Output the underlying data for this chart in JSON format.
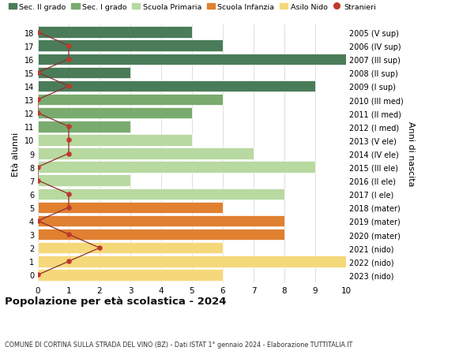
{
  "ages": [
    18,
    17,
    16,
    15,
    14,
    13,
    12,
    11,
    10,
    9,
    8,
    7,
    6,
    5,
    4,
    3,
    2,
    1,
    0
  ],
  "right_labels": [
    "2005 (V sup)",
    "2006 (IV sup)",
    "2007 (III sup)",
    "2008 (II sup)",
    "2009 (I sup)",
    "2010 (III med)",
    "2011 (II med)",
    "2012 (I med)",
    "2013 (V ele)",
    "2014 (IV ele)",
    "2015 (III ele)",
    "2016 (II ele)",
    "2017 (I ele)",
    "2018 (mater)",
    "2019 (mater)",
    "2020 (mater)",
    "2021 (nido)",
    "2022 (nido)",
    "2023 (nido)"
  ],
  "bar_values": [
    5,
    6,
    10,
    3,
    9,
    6,
    5,
    3,
    5,
    7,
    9,
    3,
    8,
    6,
    8,
    8,
    6,
    10,
    6
  ],
  "stranieri_values": [
    0,
    1,
    1,
    0,
    1,
    0,
    0,
    1,
    1,
    1,
    0,
    0,
    1,
    1,
    0,
    1,
    2,
    1,
    0
  ],
  "bar_colors": [
    "#4a7c59",
    "#4a7c59",
    "#4a7c59",
    "#4a7c59",
    "#4a7c59",
    "#7aab6e",
    "#7aab6e",
    "#7aab6e",
    "#b8d9a0",
    "#b8d9a0",
    "#b8d9a0",
    "#b8d9a0",
    "#b8d9a0",
    "#e08030",
    "#e08030",
    "#e08030",
    "#f5d87a",
    "#f5d87a",
    "#f5d87a"
  ],
  "legend_labels": [
    "Sec. II grado",
    "Sec. I grado",
    "Scuola Primaria",
    "Scuola Infanzia",
    "Asilo Nido",
    "Stranieri"
  ],
  "legend_colors": [
    "#4a7c59",
    "#7aab6e",
    "#b8d9a0",
    "#e08030",
    "#f5d87a",
    "#c0392b"
  ],
  "stranieri_color": "#c0392b",
  "stranieri_line_color": "#8b3030",
  "ylabel_left": "Età alunni",
  "ylabel_right": "Anni di nascita",
  "title": "Popolazione per età scolastica - 2024",
  "subtitle": "COMUNE DI CORTINA SULLA STRADA DEL VINO (BZ) - Dati ISTAT 1° gennaio 2024 - Elaborazione TUTTITALIA.IT",
  "xlim": [
    0,
    10
  ],
  "background_color": "#ffffff",
  "grid_color": "#d0d0d0"
}
